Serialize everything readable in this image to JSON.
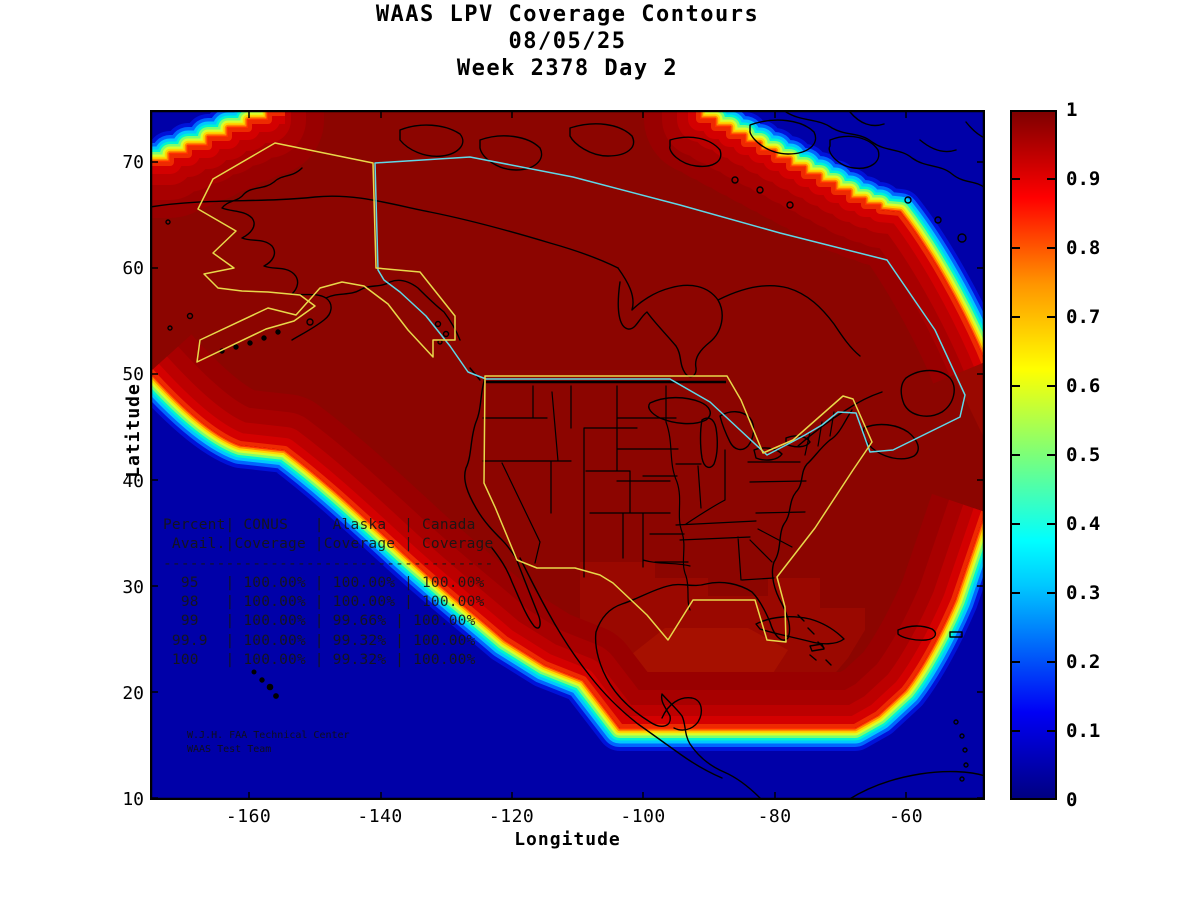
{
  "title": {
    "line1": "WAAS LPV Coverage Contours",
    "line2": "08/05/25",
    "line3": "Week 2378 Day 2"
  },
  "axes": {
    "xlabel": "Longitude",
    "ylabel": "Latitude"
  },
  "colors": {
    "ocean": "#0000A8",
    "coverage_red": "#8C0500",
    "conus_alaska_outline_yellow": "#E8D84A",
    "canada_outline_cyan": "#5FD8E8",
    "coastline_black": "#000000",
    "frame": "#000000"
  },
  "coverage_table": {
    "display_lines": [
      "Percent| CONUS   | Alaska  | Canada",
      " Avail.|Coverage |Coverage | Coverage",
      "-------------------------------------",
      "  95   | 100.00% | 100.00% | 100.00%",
      "  98   | 100.00% | 100.00% | 100.00%",
      "  99   | 100.00% | 99.66% | 100.00%",
      " 99.9  | 100.00% | 99.32% | 100.00%",
      " 100   | 100.00% | 99.32% | 100.00%"
    ]
  },
  "credit": {
    "lines": [
      "W.J.H. FAA Technical Center",
      "WAAS Test Team"
    ]
  },
  "chart_data": {
    "type": "heatmap",
    "title": "WAAS LPV Coverage Contours",
    "subtitle": [
      "08/05/25",
      "Week 2378 Day 2"
    ],
    "xlabel": "Longitude",
    "ylabel": "Latitude",
    "xlim": [
      -175,
      -48
    ],
    "ylim": [
      10,
      75
    ],
    "xticks": [
      -160,
      -140,
      -120,
      -100,
      -80,
      -60
    ],
    "yticks": [
      70,
      60,
      50,
      40,
      30,
      20,
      10
    ],
    "grid": false,
    "colorbar": {
      "min": 0,
      "max": 1,
      "ticks": [
        1,
        0.9,
        0.8,
        0.7,
        0.6,
        0.5,
        0.4,
        0.3,
        0.2,
        0.1,
        0
      ],
      "colormap": "jet",
      "position": "right"
    },
    "description": "Contour map of WAAS LPV coverage fraction (0-1, jet colormap) over North America. Coverage is ~1.0 (dark red) over CONUS, Alaska and Canada, dropping through a rainbow contour band to 0 (dark blue ocean) along the Pacific southwest edge, a southern boundary near 16.5N latitude, the northwest and northeast stair-stepped corners, and the Atlantic southeast edge. Yellow outlines mark CONUS and Alaska regions, cyan outlines Canada; black lines are coastlines and state borders.",
    "coverage_table": {
      "columns": [
        "Percent Avail.",
        "CONUS Coverage",
        "Alaska Coverage",
        "Canada Coverage"
      ],
      "rows": [
        [
          "95",
          "100.00%",
          "100.00%",
          "100.00%"
        ],
        [
          "98",
          "100.00%",
          "100.00%",
          "100.00%"
        ],
        [
          "99",
          "100.00%",
          "99.66%",
          "100.00%"
        ],
        [
          "99.9",
          "100.00%",
          "99.32%",
          "100.00%"
        ],
        [
          "100",
          "100.00%",
          "99.32%",
          "100.00%"
        ]
      ]
    },
    "annotations": [
      "W.J.H. FAA Technical Center",
      "WAAS Test Team"
    ]
  }
}
